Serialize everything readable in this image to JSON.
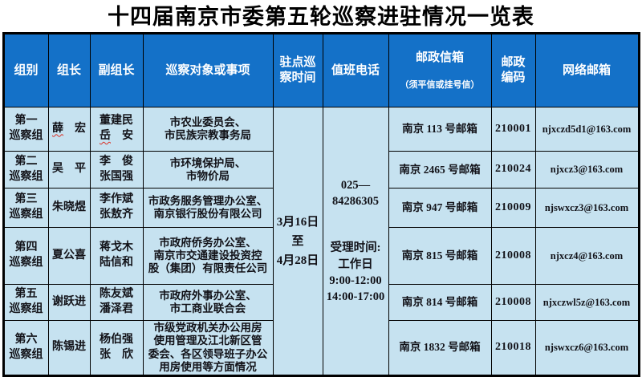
{
  "title": "十四届南京市委第五轮巡察进驻情况一览表",
  "colors": {
    "header_bg": "#1471c8",
    "cell_bg": "#c6e2f0",
    "border": "#000000",
    "header_text": "#ffffff",
    "misspell_underline": "#d93025"
  },
  "table": {
    "headers": {
      "group": "组别",
      "leader": "组长",
      "deputy": "副组长",
      "targets": "巡察对象或事项",
      "duty_time": "驻点巡\n察时间",
      "phone": "值班电话",
      "mailbox": "邮政信箱",
      "mailbox_note": "（须平信或挂号信）",
      "postcode": "邮政\n编码",
      "email": "网络邮箱"
    },
    "merged": {
      "duty_time": "3月16日\n至\n4月28日",
      "phone_number": "025—\n84286305",
      "reception": "受理时间:\n工作日\n9:00-12:00\n14:00-17:00"
    },
    "rows": [
      {
        "group": "第一\n巡察组",
        "leader_head": "薛",
        "leader_tail": "　宏",
        "deputy_line1": "董建民",
        "deputy2_head": "岳",
        "deputy2_tail": "　安",
        "targets": "市农业委员会、\n市民族宗教事务局",
        "mailbox": "南京 113 号邮箱",
        "postcode": "210001",
        "email": "njxczd5d1@163.com"
      },
      {
        "group": "第二\n巡察组",
        "leader": "吴　平",
        "deputy": "李　俊\n张国强",
        "targets": "市环境保护局、\n市物价局",
        "mailbox": "南京 2465 号邮箱",
        "postcode": "210024",
        "email": "njxcz3@163.com"
      },
      {
        "group": "第三\n巡察组",
        "leader": "朱晓煜",
        "deputy": "李作斌\n张敖齐",
        "targets": "市政务服务管理办公室、\n南京银行股份有限公司",
        "mailbox": "南京 947 号邮箱",
        "postcode": "210009",
        "email": "njswxcz3@163.com"
      },
      {
        "group": "第四\n巡察组",
        "leader": "夏公喜",
        "deputy": "蒋戈木\n陆信和",
        "targets": "市政府侨务办公室、\n南京市交通建设投资控\n股（集团）有限责任公司",
        "mailbox": "南京 815 号邮箱",
        "postcode": "210008",
        "email": "njxcz4@163.com"
      },
      {
        "group": "第五\n巡察组",
        "leader": "谢跃进",
        "deputy": "陈友斌\n潘泽君",
        "targets": "市政府外事办公室、\n市工商业联合会",
        "mailbox": "南京 814 号邮箱",
        "postcode": "210008",
        "email": "njxczwl5z@163.com"
      },
      {
        "group": "第六\n巡察组",
        "leader": "陈锡进",
        "deputy": "杨伯强\n张　欣",
        "targets": "市级党政机关办公用房\n使用管理及江北新区管\n委会、各区领导班子办公\n用房使用等方面情况",
        "mailbox": "南京 1832 号邮箱",
        "postcode": "210018",
        "email": "njswxcz6@163.com"
      }
    ]
  }
}
